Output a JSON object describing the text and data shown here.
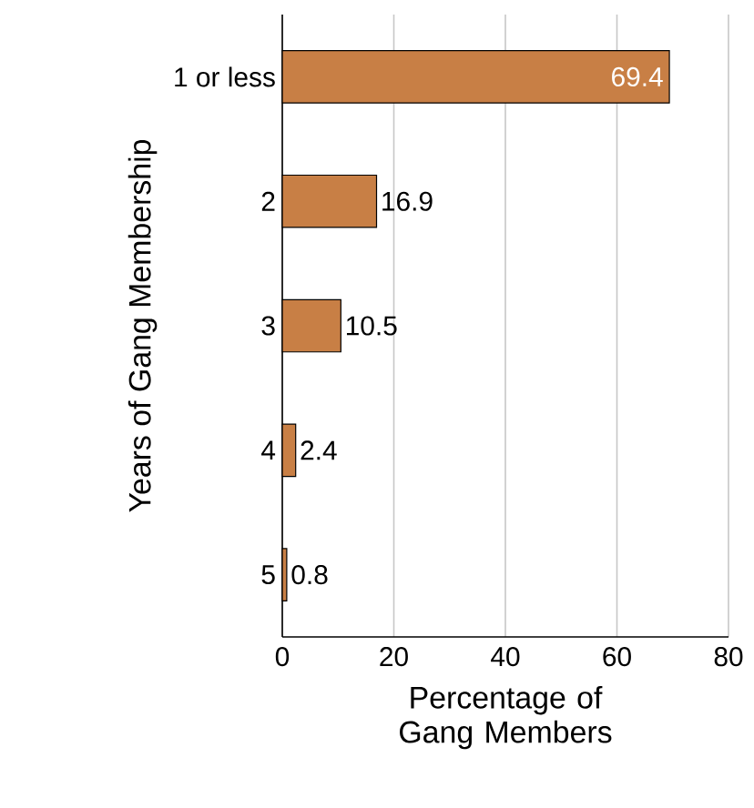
{
  "chart_data": {
    "type": "bar",
    "orientation": "horizontal",
    "xlabel": "Percentage of Gang Members",
    "ylabel": "Years of Gang Membership",
    "categories": [
      "1 or less",
      "2",
      "3",
      "4",
      "5"
    ],
    "values": [
      69.4,
      16.9,
      10.5,
      2.4,
      0.8
    ],
    "color": "#c87f45",
    "xlim": [
      0,
      80
    ],
    "xticks": [
      0,
      20,
      40,
      60,
      80
    ],
    "grid": "x",
    "data_labels": true
  }
}
